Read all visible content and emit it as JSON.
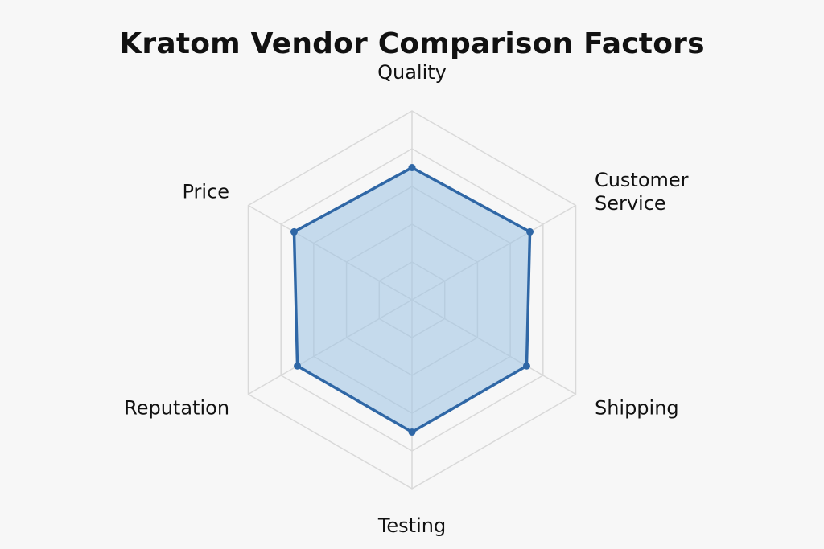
{
  "chart_data": {
    "type": "radar",
    "title": "Kratom Vendor Comparison Factors",
    "axes": [
      {
        "label": "Quality",
        "lines": [
          "Quality"
        ]
      },
      {
        "label": "Customer Service",
        "lines": [
          "Customer",
          "Service"
        ]
      },
      {
        "label": "Shipping",
        "lines": [
          "Shipping"
        ]
      },
      {
        "label": "Testing",
        "lines": [
          "Testing"
        ]
      },
      {
        "label": "Reputation",
        "lines": [
          "Reputation"
        ]
      },
      {
        "label": "Price",
        "lines": [
          "Price"
        ]
      }
    ],
    "rlim": [
      0,
      5
    ],
    "rings": 5,
    "values": [
      3.5,
      3.6,
      3.5,
      3.5,
      3.5,
      3.6
    ],
    "grid": true,
    "legend": "none",
    "colors": {
      "grid": "#d9d9d9",
      "series_line": "#2f67a6",
      "series_fill": "#9cc2e3",
      "point": "#2f67a6"
    }
  }
}
